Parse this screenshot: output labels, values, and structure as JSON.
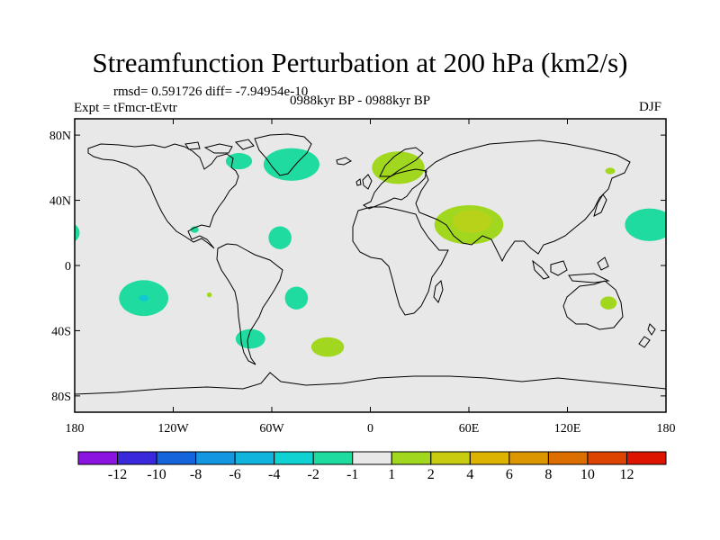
{
  "title": "Streamfunction Perturbation at 200 hPa (km2/s)",
  "stats_line": "rmsd= 0.591726 diff= -7.94954e-10",
  "experiment": "Expt = tFmcr-tEvtr",
  "period": "0988kyr BP - 0988kyr BP",
  "season": "DJF",
  "colors": {
    "ocean": "#e8e8e8",
    "coast": "#000000",
    "frame": "#000000"
  },
  "map_data": {
    "projection": "cylindrical-equidistant",
    "lon_range": [
      -180,
      180
    ],
    "lat_range": [
      -90,
      90
    ],
    "lat_ticks": [
      {
        "value": 80,
        "label": "80N"
      },
      {
        "value": 40,
        "label": "40N"
      },
      {
        "value": 0,
        "label": "0"
      },
      {
        "value": -40,
        "label": "40S"
      },
      {
        "value": -80,
        "label": "80S"
      }
    ],
    "lon_ticks": [
      {
        "value": -180,
        "label": "180"
      },
      {
        "value": -120,
        "label": "120W"
      },
      {
        "value": -60,
        "label": "60W"
      },
      {
        "value": 0,
        "label": "0"
      },
      {
        "value": 60,
        "label": "60E"
      },
      {
        "value": 120,
        "label": "120E"
      },
      {
        "value": 180,
        "label": "180"
      }
    ],
    "anomalies": [
      {
        "name": "north-atlantic-low",
        "lon": -48,
        "lat": 62,
        "rlon": 17,
        "rlat": 10,
        "color": "#20dba0"
      },
      {
        "name": "hudson-low",
        "lon": -80,
        "lat": 64,
        "rlon": 8,
        "rlat": 5,
        "color": "#20dba0"
      },
      {
        "name": "scandinavia-high",
        "lon": 17,
        "lat": 60,
        "rlon": 16,
        "rlat": 10,
        "color": "#a2d720"
      },
      {
        "name": "subtropical-atlantic-low",
        "lon": -55,
        "lat": 17,
        "rlon": 7,
        "rlat": 7,
        "color": "#20dba0"
      },
      {
        "name": "east-pacific-low",
        "lon": -183,
        "lat": 20,
        "rlon": 6,
        "rlat": 6,
        "color": "#20dba0"
      },
      {
        "name": "caribbean-spot",
        "lon": -107,
        "lat": 22,
        "rlon": 2.5,
        "rlat": 2,
        "color": "#20dba0"
      },
      {
        "name": "arabia-high",
        "lon": 60,
        "lat": 25,
        "rlon": 21,
        "rlat": 12,
        "color": "#a2d720"
      },
      {
        "name": "arabia-high-core",
        "lon": 62,
        "lat": 27,
        "rlon": 12,
        "rlat": 7,
        "color": "#b8d21a"
      },
      {
        "name": "north-pacific-low",
        "lon": 170,
        "lat": 25,
        "rlon": 15,
        "rlat": 10,
        "color": "#20dba0"
      },
      {
        "name": "siberia-spot",
        "lon": 146,
        "lat": 58,
        "rlon": 3,
        "rlat": 2,
        "color": "#a2d720"
      },
      {
        "name": "south-pacific-low",
        "lon": -138,
        "lat": -20,
        "rlon": 15,
        "rlat": 11,
        "color": "#20dba0"
      },
      {
        "name": "south-pacific-core",
        "lon": -138,
        "lat": -20,
        "rlon": 3,
        "rlat": 2,
        "color": "#10c8d0"
      },
      {
        "name": "south-pacific-spot",
        "lon": -98,
        "lat": -18,
        "rlon": 1.5,
        "rlat": 1.5,
        "color": "#a2d720"
      },
      {
        "name": "south-atlantic-low",
        "lon": -45,
        "lat": -20,
        "rlon": 7,
        "rlat": 7,
        "color": "#20dba0"
      },
      {
        "name": "patagonia-low",
        "lon": -73,
        "lat": -45,
        "rlon": 9,
        "rlat": 6,
        "color": "#20dba0"
      },
      {
        "name": "south-atlantic-high",
        "lon": -26,
        "lat": -50,
        "rlon": 10,
        "rlat": 6,
        "color": "#a2d720"
      },
      {
        "name": "australia-high",
        "lon": 145,
        "lat": -23,
        "rlon": 5,
        "rlat": 4,
        "color": "#a2d720"
      }
    ]
  },
  "colorbar": {
    "colors": [
      "#8c14e0",
      "#3a28dc",
      "#1464dc",
      "#1496e0",
      "#10b4dc",
      "#10d2d2",
      "#20dba0",
      "#e8e8e8",
      "#a2d720",
      "#c8cc10",
      "#dcb400",
      "#dc9600",
      "#dc6e00",
      "#dc4400",
      "#dc1400"
    ],
    "labels": [
      "-12",
      "-10",
      "-8",
      "-6",
      "-4",
      "-2",
      "-1",
      "1",
      "2",
      "4",
      "6",
      "8",
      "10",
      "12"
    ]
  }
}
